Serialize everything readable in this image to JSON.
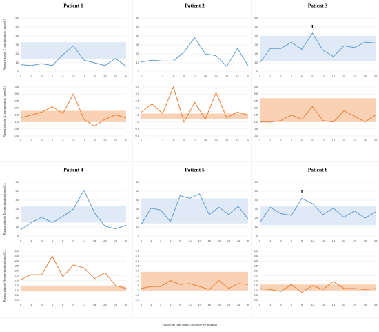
{
  "y_label_e": "Plasma vitamin E concentration (μmol/L)",
  "y_label_a": "Plasma vitamin A concentration (μmol/L)",
  "x_label": "Follow-up time points (baseline-39 months)",
  "chart_data": [
    {
      "type": "line",
      "title": "Patient 1",
      "categories": [
        "0",
        "1",
        "3",
        "4",
        "9",
        "13",
        "18",
        "24",
        "29",
        "34",
        "39"
      ],
      "vitamin_e": {
        "color": "#5b9bd5",
        "band": [
          14,
          33
        ],
        "ylim": [
          0,
          60
        ],
        "yticks": [
          0,
          10,
          20,
          30,
          40,
          50,
          60
        ],
        "values": [
          8,
          7,
          9,
          7,
          19,
          29,
          13,
          10,
          7,
          15,
          6
        ]
      },
      "vitamin_a": {
        "color": "#ed7d31",
        "band": [
          1.0,
          1.8
        ],
        "ylim": [
          0,
          3.5
        ],
        "yticks": [
          {
            "value": 0,
            "label": "0.0"
          },
          {
            "value": 0.5,
            "label": "0.5"
          },
          {
            "value": 1,
            "label": "1.0"
          },
          {
            "value": 1.5,
            "label": "1.5"
          },
          {
            "value": 2,
            "label": "2.0"
          },
          {
            "value": 2.5,
            "label": "2.5"
          },
          {
            "value": 3,
            "label": "3.0"
          },
          {
            "value": 3.5,
            "label": "3.5"
          }
        ],
        "values": [
          1.3,
          1.5,
          1.7,
          2.1,
          1.6,
          3.0,
          1.2,
          0.7,
          1.2,
          1.5,
          1.3
        ]
      }
    },
    {
      "type": "line",
      "title": "Patient 2",
      "categories": [
        "0",
        "1",
        "3",
        "4",
        "9",
        "13",
        "18",
        "24",
        "29",
        "34",
        "39"
      ],
      "vitamin_e": {
        "color": "#5b9bd5",
        "ylim": [
          0,
          60
        ],
        "yticks": [
          0,
          10,
          20,
          30,
          40,
          50,
          60
        ],
        "values": [
          11,
          13,
          12,
          12,
          22,
          38,
          20,
          18,
          6,
          26,
          7
        ]
      },
      "vitamin_a": {
        "color": "#ed7d31",
        "band": [
          1.2,
          1.6
        ],
        "ylim": [
          0,
          3.5
        ],
        "yticks": [
          {
            "value": 0,
            "label": "0.0"
          },
          {
            "value": 0.5,
            "label": "0.5"
          },
          {
            "value": 1,
            "label": "1.0"
          },
          {
            "value": 1.5,
            "label": "1.5"
          },
          {
            "value": 2,
            "label": "2.0"
          },
          {
            "value": 2.5,
            "label": "2.5"
          },
          {
            "value": 3,
            "label": "3.0"
          },
          {
            "value": 3.5,
            "label": "3.5"
          }
        ],
        "values": [
          1.7,
          2.3,
          1.6,
          3.5,
          1.0,
          2.4,
          1.2,
          3.1,
          1.3,
          1.7,
          1.5
        ]
      }
    },
    {
      "type": "line",
      "title": "Patient 3",
      "annotation": "I",
      "categories": [
        "0",
        "1",
        "2",
        "4",
        "6",
        "9",
        "12",
        "15",
        "18",
        "24",
        "29",
        "39"
      ],
      "vitamin_e": {
        "color": "#5b9bd5",
        "band": [
          12,
          40
        ],
        "ylim": [
          0,
          60
        ],
        "yticks": [
          0,
          10,
          20,
          30,
          40,
          50,
          60
        ],
        "values": [
          10,
          26,
          26,
          33,
          25,
          43,
          24,
          17,
          29,
          27,
          33,
          32
        ]
      },
      "vitamin_a": {
        "color": "#ed7d31",
        "band": [
          1.0,
          2.7
        ],
        "ylim": [
          0,
          3.5
        ],
        "yticks": [
          {
            "value": 0,
            "label": "0.0"
          },
          {
            "value": 0.5,
            "label": "0.5"
          },
          {
            "value": 1,
            "label": "1.0"
          },
          {
            "value": 1.5,
            "label": "1.5"
          },
          {
            "value": 2,
            "label": "2.0"
          },
          {
            "value": 2.5,
            "label": "2.5"
          },
          {
            "value": 3,
            "label": "3.0"
          },
          {
            "value": 3.5,
            "label": "3.5"
          }
        ],
        "values": [
          1.0,
          1.0,
          1.1,
          1.5,
          1.2,
          2.1,
          1.1,
          1.0,
          1.8,
          1.4,
          1.0,
          1.5
        ]
      }
    },
    {
      "type": "line",
      "title": "Patient 4",
      "categories": [
        "0",
        "1",
        "3",
        "4",
        "6",
        "9",
        "13",
        "18",
        "24",
        "29",
        "34"
      ],
      "vitamin_e": {
        "color": "#5b9bd5",
        "band": [
          15,
          33
        ],
        "ylim": [
          0,
          60
        ],
        "yticks": [
          0,
          10,
          20,
          30,
          40,
          50,
          60
        ],
        "values": [
          7,
          15,
          21,
          15,
          22,
          30,
          51,
          26,
          11,
          8,
          12
        ]
      },
      "vitamin_a": {
        "color": "#ed7d31",
        "band": [
          0.9,
          1.4
        ],
        "ylim": [
          0,
          5
        ],
        "yticks": [
          {
            "value": 0,
            "label": "0.0"
          },
          {
            "value": 0.5,
            "label": "0.5"
          },
          {
            "value": 1,
            "label": "1.0"
          },
          {
            "value": 1.5,
            "label": "1.5"
          },
          {
            "value": 2,
            "label": "2.0"
          },
          {
            "value": 2.5,
            "label": "2.5"
          },
          {
            "value": 3,
            "label": "3.0"
          },
          {
            "value": 3.5,
            "label": "3.5"
          },
          {
            "value": 4,
            "label": "4.0"
          },
          {
            "value": 4.5,
            "label": "4.5"
          },
          {
            "value": 5,
            "label": "5.0"
          }
        ],
        "values": [
          2.1,
          2.6,
          2.6,
          4.5,
          2.4,
          3.6,
          3.3,
          2.2,
          2.8,
          1.5,
          1.2
        ]
      }
    },
    {
      "type": "line",
      "title": "Patient 5",
      "categories": [
        "0",
        "1",
        "4",
        "6",
        "9",
        "12",
        "15",
        "18",
        "24",
        "29",
        "34",
        "39"
      ],
      "vitamin_e": {
        "color": "#5b9bd5",
        "band": [
          14,
          42
        ],
        "ylim": [
          0,
          60
        ],
        "yticks": [
          0,
          10,
          20,
          30,
          40,
          50,
          60
        ],
        "values": [
          13,
          31,
          29,
          16,
          45,
          42,
          47,
          24,
          32,
          24,
          33,
          19
        ]
      },
      "vitamin_a": {
        "color": "#ed7d31",
        "band": [
          1.0,
          2.9
        ],
        "ylim": [
          0,
          5
        ],
        "yticks": [
          {
            "value": 0,
            "label": "0.0"
          },
          {
            "value": 0.5,
            "label": "0.5"
          },
          {
            "value": 1,
            "label": "1.0"
          },
          {
            "value": 1.5,
            "label": "1.5"
          },
          {
            "value": 2,
            "label": "2.0"
          },
          {
            "value": 2.5,
            "label": "2.5"
          },
          {
            "value": 3,
            "label": "3.0"
          },
          {
            "value": 3.5,
            "label": "3.5"
          },
          {
            "value": 4,
            "label": "4.0"
          },
          {
            "value": 4.5,
            "label": "4.5"
          },
          {
            "value": 5,
            "label": "5.0"
          }
        ],
        "values": [
          1.2,
          1.4,
          1.4,
          2.0,
          1.6,
          1.7,
          1.4,
          1.1,
          2.0,
          1.2,
          1.7,
          1.6
        ]
      }
    },
    {
      "type": "line",
      "title": "Patient 6",
      "annotation": "I",
      "categories": [
        "0",
        "1",
        "3",
        "6",
        "9",
        "12",
        "15",
        "18",
        "24",
        "29",
        "34",
        "39"
      ],
      "vitamin_e": {
        "color": "#5b9bd5",
        "band": [
          12,
          33
        ],
        "ylim": [
          0,
          60
        ],
        "yticks": [
          0,
          10,
          20,
          30,
          40,
          50,
          60
        ],
        "values": [
          15,
          32,
          25,
          23,
          42,
          36,
          24,
          31,
          21,
          28,
          20,
          27
        ]
      },
      "vitamin_a": {
        "color": "#ed7d31",
        "band": [
          1.0,
          1.6
        ],
        "ylim": [
          0,
          5
        ],
        "yticks": [
          {
            "value": 0,
            "label": "0.0"
          },
          {
            "value": 0.5,
            "label": "0.5"
          },
          {
            "value": 1,
            "label": "1.0"
          },
          {
            "value": 1.5,
            "label": "1.5"
          },
          {
            "value": 2,
            "label": "2.0"
          },
          {
            "value": 2.5,
            "label": "2.5"
          },
          {
            "value": 3,
            "label": "3.0"
          },
          {
            "value": 3.5,
            "label": "3.5"
          },
          {
            "value": 4,
            "label": "4.0"
          },
          {
            "value": 4.5,
            "label": "4.5"
          },
          {
            "value": 5,
            "label": "5.0"
          }
        ],
        "values": [
          1.2,
          1.1,
          0.9,
          1.6,
          0.8,
          1.5,
          1.1,
          1.9,
          1.2,
          1.2,
          1.1,
          1.2
        ]
      }
    }
  ]
}
